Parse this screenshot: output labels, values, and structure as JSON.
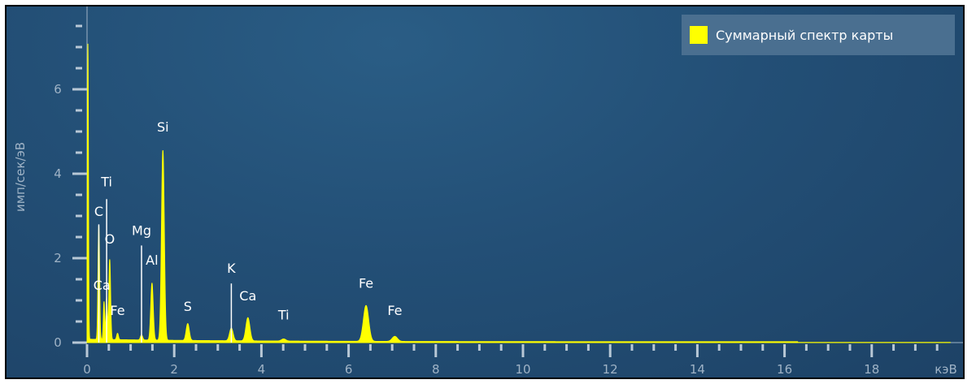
{
  "chart_data": {
    "type": "line",
    "title": "",
    "xlabel": "кэВ",
    "ylabel": "имп/сек/эВ",
    "xlim": [
      0,
      20
    ],
    "ylim": [
      0,
      7.6
    ],
    "x_ticks": [
      0,
      2,
      4,
      6,
      8,
      10,
      12,
      14,
      16,
      18
    ],
    "y_ticks": [
      0,
      2,
      4,
      6
    ],
    "legend": {
      "position": "top-right",
      "entries": [
        "Суммарный спектр карты"
      ]
    },
    "grid": false,
    "series": [
      {
        "name": "Суммарный спектр карты",
        "color": "#ffff00",
        "peaks": [
          {
            "energy": 0.02,
            "height": 7.0,
            "width": 0.012
          },
          {
            "energy": 0.27,
            "height": 2.7,
            "width": 0.018
          },
          {
            "energy": 0.39,
            "height": 0.9,
            "width": 0.015
          },
          {
            "energy": 0.52,
            "height": 1.9,
            "width": 0.02
          },
          {
            "energy": 0.45,
            "height": 1.0,
            "width": 0.015
          },
          {
            "energy": 0.7,
            "height": 0.15,
            "width": 0.02
          },
          {
            "energy": 1.25,
            "height": 0.12,
            "width": 0.025
          },
          {
            "energy": 1.49,
            "height": 1.35,
            "width": 0.028
          },
          {
            "energy": 1.74,
            "height": 4.5,
            "width": 0.032
          },
          {
            "energy": 2.31,
            "height": 0.4,
            "width": 0.035
          },
          {
            "energy": 3.31,
            "height": 0.3,
            "width": 0.04
          },
          {
            "energy": 3.69,
            "height": 0.55,
            "width": 0.045
          },
          {
            "energy": 4.51,
            "height": 0.05,
            "width": 0.05
          },
          {
            "energy": 6.4,
            "height": 0.85,
            "width": 0.06
          },
          {
            "energy": 7.06,
            "height": 0.12,
            "width": 0.06
          }
        ]
      }
    ],
    "annotations": [
      {
        "label": "Si",
        "energy": 1.74,
        "level": 5.0,
        "line_top": null
      },
      {
        "label": "Ti",
        "energy": 0.45,
        "level": 3.7,
        "line_top": 3.4
      },
      {
        "label": "C",
        "energy": 0.27,
        "level": 3.0,
        "line_top": 2.8
      },
      {
        "label": "O",
        "energy": 0.52,
        "level": 2.35,
        "line_top": null
      },
      {
        "label": "Mg",
        "energy": 1.25,
        "level": 2.55,
        "line_top": 2.3
      },
      {
        "label": "Al",
        "energy": 1.49,
        "level": 1.85,
        "line_top": null
      },
      {
        "label": "Ca",
        "energy": 0.34,
        "level": 1.25,
        "line_top": null
      },
      {
        "label": "Fe",
        "energy": 0.7,
        "level": 0.65,
        "line_top": null
      },
      {
        "label": "S",
        "energy": 2.31,
        "level": 0.75,
        "line_top": null
      },
      {
        "label": "K",
        "energy": 3.31,
        "level": 1.65,
        "line_top": 1.4
      },
      {
        "label": "Ca",
        "energy": 3.69,
        "level": 1.0,
        "line_top": null
      },
      {
        "label": "Ti",
        "energy": 4.51,
        "level": 0.55,
        "line_top": null
      },
      {
        "label": "Fe",
        "energy": 6.4,
        "level": 1.3,
        "line_top": null
      },
      {
        "label": "Fe",
        "energy": 7.06,
        "level": 0.65,
        "line_top": null
      }
    ]
  }
}
